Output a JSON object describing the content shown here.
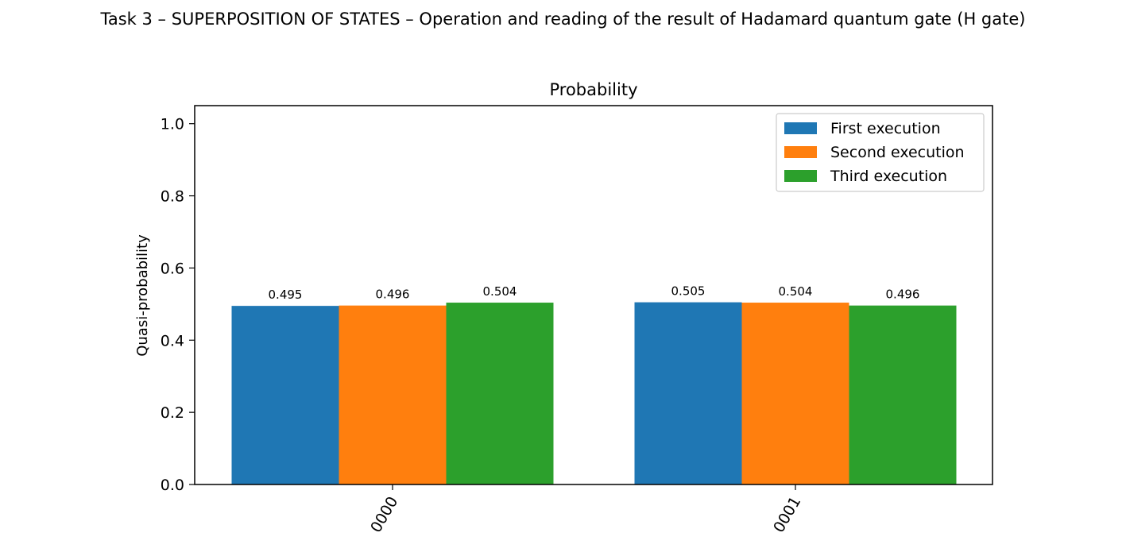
{
  "figure": {
    "suptitle": "Task 3 – SUPERPOSITION OF STATES – Operation and reading of the result of Hadamard quantum gate (H gate)"
  },
  "chart_data": {
    "type": "bar",
    "title": "Probability",
    "xlabel": "",
    "ylabel": "Quasi-probability",
    "categories": [
      "0000",
      "0001"
    ],
    "series": [
      {
        "name": "First execution",
        "values": [
          0.495,
          0.505
        ],
        "color": "#1f77b4"
      },
      {
        "name": "Second execution",
        "values": [
          0.496,
          0.504
        ],
        "color": "#ff7f0e"
      },
      {
        "name": "Third execution",
        "values": [
          0.504,
          0.496
        ],
        "color": "#2ca02c"
      }
    ],
    "bar_labels": [
      [
        "0.495",
        "0.505"
      ],
      [
        "0.496",
        "0.504"
      ],
      [
        "0.504",
        "0.496"
      ]
    ],
    "ylim": [
      0,
      1.05
    ],
    "yticks": [
      0.0,
      0.2,
      0.4,
      0.6,
      0.8,
      1.0
    ],
    "ytick_labels": [
      "0.0",
      "0.2",
      "0.4",
      "0.6",
      "0.8",
      "1.0"
    ],
    "xtick_rotation_deg": -60,
    "legend": "upper right",
    "grid": false
  }
}
